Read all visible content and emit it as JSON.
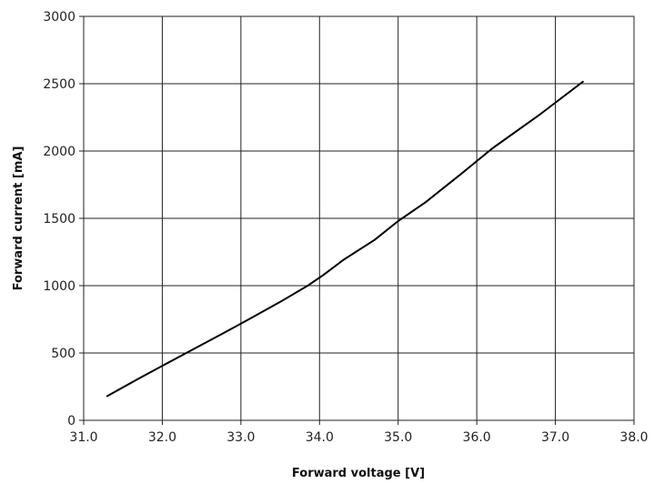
{
  "chart_data": {
    "type": "line",
    "title": "",
    "xlabel": "Forward voltage [V]",
    "ylabel": "Forward current [mA]",
    "xlim": [
      31.0,
      38.0
    ],
    "ylim": [
      0,
      3000
    ],
    "xticks": [
      "31.0",
      "32.0",
      "33.0",
      "34.0",
      "35.0",
      "36.0",
      "37.0",
      "38.0"
    ],
    "yticks": [
      "0",
      "500",
      "1000",
      "1500",
      "2000",
      "2500",
      "3000"
    ],
    "grid": true,
    "series": [
      {
        "x": [
          31.3,
          31.7,
          32.0,
          32.4,
          32.8,
          33.1,
          33.5,
          33.85,
          34.05,
          34.3,
          34.7,
          35.0,
          35.35,
          35.8,
          36.2,
          36.8,
          37.35
        ],
        "y": [
          180,
          310,
          405,
          530,
          655,
          750,
          880,
          1000,
          1080,
          1190,
          1340,
          1480,
          1620,
          1830,
          2020,
          2270,
          2515
        ]
      }
    ]
  }
}
